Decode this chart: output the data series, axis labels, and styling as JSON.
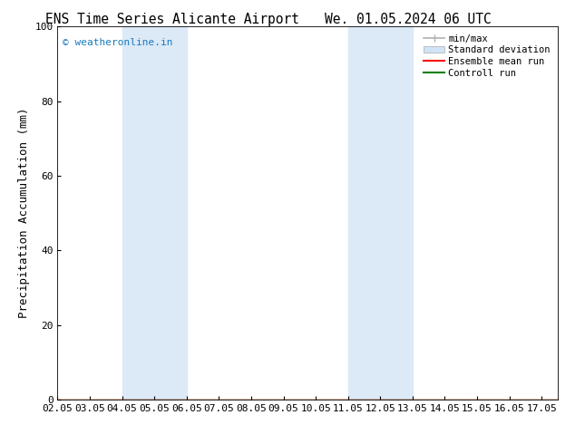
{
  "title_left": "ENS Time Series Alicante Airport",
  "title_right": "We. 01.05.2024 06 UTC",
  "ylabel": "Precipitation Accumulation (mm)",
  "xlim": [
    2.0,
    17.5
  ],
  "ylim": [
    0,
    100
  ],
  "yticks": [
    0,
    20,
    40,
    60,
    80,
    100
  ],
  "xtick_labels": [
    "02.05",
    "03.05",
    "04.05",
    "05.05",
    "06.05",
    "07.05",
    "08.05",
    "09.05",
    "10.05",
    "11.05",
    "12.05",
    "13.05",
    "14.05",
    "15.05",
    "16.05",
    "17.05"
  ],
  "xtick_positions": [
    2.0,
    3.0,
    4.0,
    5.0,
    6.0,
    7.0,
    8.0,
    9.0,
    10.0,
    11.0,
    12.0,
    13.0,
    14.0,
    15.0,
    16.0,
    17.0
  ],
  "shaded_regions": [
    {
      "xmin": 4.0,
      "xmax": 6.0,
      "color": "#dce9f7"
    },
    {
      "xmin": 11.0,
      "xmax": 13.0,
      "color": "#dce9f7"
    }
  ],
  "watermark_text": "© weatheronline.in",
  "watermark_color": "#1a7abf",
  "bg_color": "#ffffff",
  "legend_items": [
    {
      "label": "min/max",
      "color": "#b0b0b0",
      "lw": 1.2,
      "type": "minmax"
    },
    {
      "label": "Standard deviation",
      "color": "#d0e4f5",
      "lw": 5,
      "type": "patch"
    },
    {
      "label": "Ensemble mean run",
      "color": "#ff0000",
      "lw": 1.5,
      "type": "line"
    },
    {
      "label": "Controll run",
      "color": "#008000",
      "lw": 1.5,
      "type": "line"
    }
  ],
  "title_fontsize": 10.5,
  "tick_fontsize": 8,
  "ylabel_fontsize": 9
}
